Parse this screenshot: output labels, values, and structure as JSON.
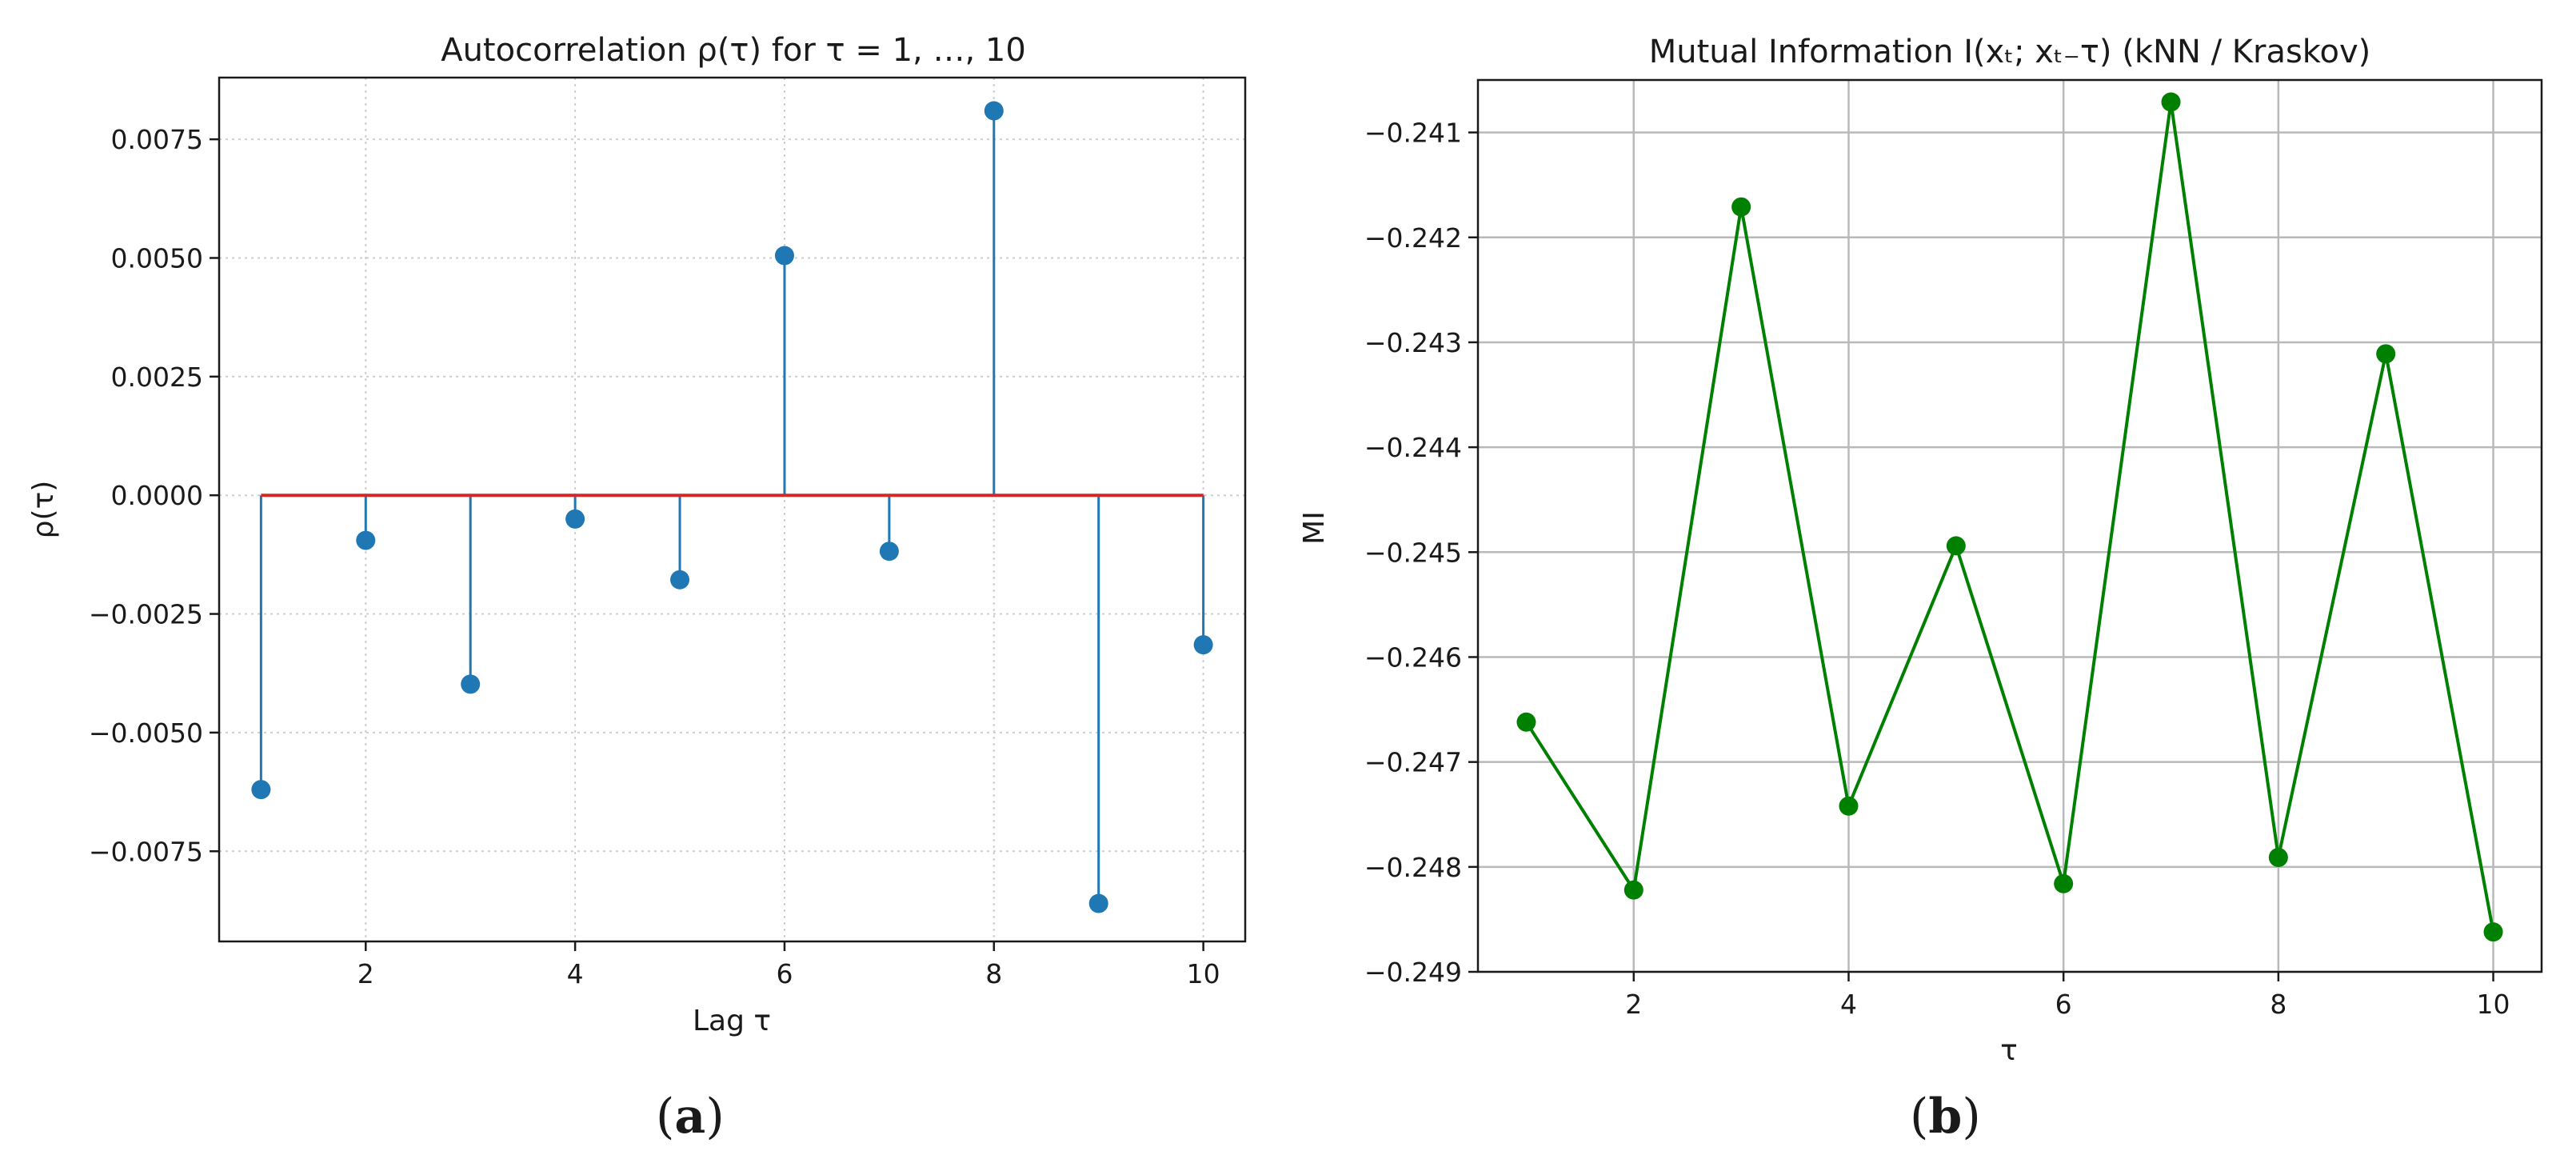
{
  "chart_data": [
    {
      "type": "stem",
      "title": "Autocorrelation ρ(τ) for τ = 1, …, 10",
      "xlabel": "Lag τ",
      "ylabel": "ρ(τ)",
      "panel_label": "(a)",
      "x": [
        1,
        2,
        3,
        4,
        5,
        6,
        7,
        8,
        9,
        10
      ],
      "values": [
        -0.0062,
        -0.00095,
        -0.00398,
        -0.0005,
        -0.00178,
        0.00505,
        -0.00118,
        0.0081,
        -0.0086,
        -0.00315
      ],
      "xlim": [
        0.6,
        10.4
      ],
      "ylim": [
        -0.0094,
        0.0088
      ],
      "xticks": [
        2,
        4,
        6,
        8,
        10
      ],
      "yticks": [
        -0.0075,
        -0.005,
        -0.0025,
        0,
        0.0025,
        0.005,
        0.0075
      ],
      "ytick_labels": [
        "−0.0075",
        "−0.0050",
        "−0.0025",
        "0.0000",
        "0.0025",
        "0.0050",
        "0.0075"
      ],
      "grid": "dotted",
      "colors": {
        "stem": "#1f77b4",
        "marker": "#1f77b4",
        "baseline": "#d62728"
      }
    },
    {
      "type": "line",
      "title": "Mutual Information I(xₜ; xₜ₋τ)  (kNN / Kraskov)",
      "xlabel": "τ",
      "ylabel": "MI",
      "panel_label": "(b)",
      "x": [
        1,
        2,
        3,
        4,
        5,
        6,
        7,
        8,
        9,
        10
      ],
      "values": [
        -0.24662,
        -0.24822,
        -0.24171,
        -0.24742,
        -0.24494,
        -0.24816,
        -0.24071,
        -0.24791,
        -0.24311,
        -0.24862
      ],
      "xlim": [
        0.55,
        10.45
      ],
      "ylim": [
        -0.249,
        -0.2405
      ],
      "xticks": [
        2,
        4,
        6,
        8,
        10
      ],
      "yticks": [
        -0.249,
        -0.248,
        -0.247,
        -0.246,
        -0.245,
        -0.244,
        -0.243,
        -0.242,
        -0.241
      ],
      "ytick_labels": [
        "−0.249",
        "−0.248",
        "−0.247",
        "−0.246",
        "−0.245",
        "−0.244",
        "−0.243",
        "−0.242",
        "−0.241"
      ],
      "grid": "solid",
      "colors": {
        "line": "#008000",
        "marker": "#008000"
      }
    }
  ]
}
